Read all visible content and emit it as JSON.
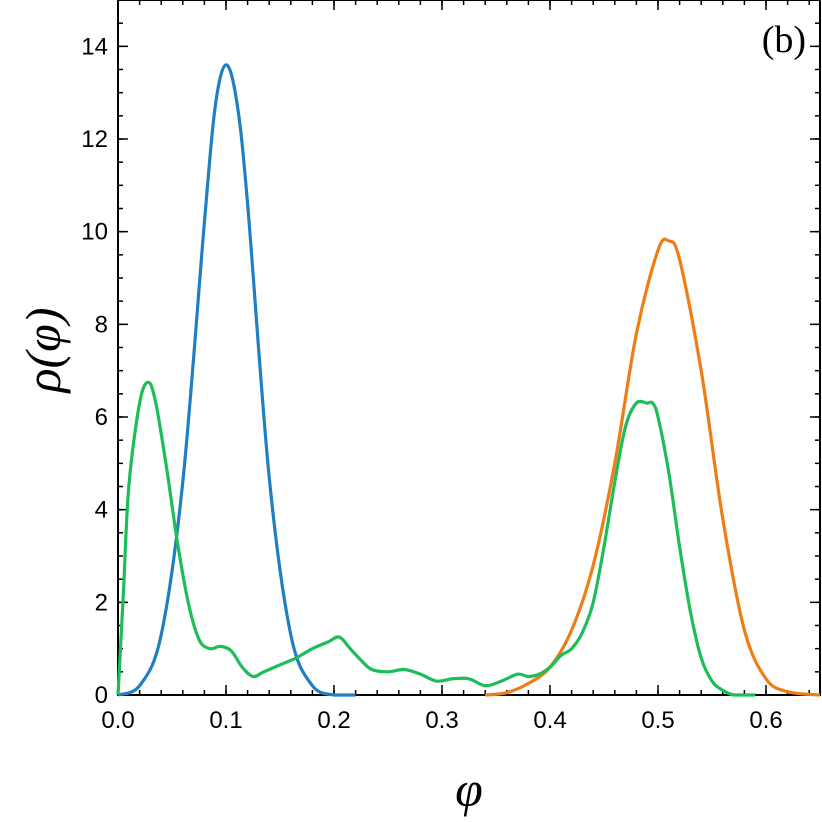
{
  "chart_data": {
    "type": "line",
    "panel_label": "(b)",
    "xlabel": "φ",
    "ylabel": "ρ(φ)",
    "xlim": [
      0,
      0.65
    ],
    "ylim": [
      0,
      15
    ],
    "x_ticks": [
      "0.0",
      "0.1",
      "0.2",
      "0.3",
      "0.4",
      "0.5",
      "0.6"
    ],
    "y_ticks": [
      "0",
      "2",
      "4",
      "6",
      "8",
      "10",
      "12",
      "14"
    ],
    "grid": false,
    "legend": "none",
    "series": [
      {
        "color": "#1f7fc0",
        "x": [
          0,
          0.02,
          0.04,
          0.06,
          0.08,
          0.09,
          0.1,
          0.11,
          0.12,
          0.14,
          0.16,
          0.18,
          0.2,
          0.22
        ],
        "y": [
          0,
          0.2,
          1.3,
          4.6,
          10.2,
          12.7,
          13.6,
          12.8,
          10.6,
          4.7,
          1.3,
          0.2,
          0,
          0
        ]
      },
      {
        "color": "#ef7d16",
        "x": [
          0.34,
          0.36,
          0.38,
          0.4,
          0.42,
          0.44,
          0.46,
          0.48,
          0.5,
          0.51,
          0.52,
          0.54,
          0.56,
          0.58,
          0.6,
          0.62,
          0.65
        ],
        "y": [
          0,
          0.05,
          0.25,
          0.6,
          1.4,
          2.8,
          5.0,
          7.8,
          9.6,
          9.8,
          9.4,
          7.0,
          3.8,
          1.4,
          0.35,
          0.07,
          0
        ]
      },
      {
        "color": "#1dbd57",
        "x": [
          0,
          0.005,
          0.01,
          0.02,
          0.028,
          0.035,
          0.045,
          0.055,
          0.065,
          0.075,
          0.085,
          0.095,
          0.105,
          0.115,
          0.125,
          0.135,
          0.15,
          0.165,
          0.18,
          0.195,
          0.205,
          0.215,
          0.225,
          0.235,
          0.25,
          0.265,
          0.28,
          0.295,
          0.31,
          0.325,
          0.34,
          0.355,
          0.37,
          0.38,
          0.39,
          0.4,
          0.41,
          0.42,
          0.43,
          0.44,
          0.45,
          0.46,
          0.47,
          0.48,
          0.49,
          0.495,
          0.5,
          0.51,
          0.52,
          0.53,
          0.54,
          0.55,
          0.56,
          0.57,
          0.58,
          0.59
        ],
        "y": [
          0,
          2.2,
          4.5,
          6.3,
          6.75,
          6.3,
          4.9,
          3.3,
          2.0,
          1.2,
          1.0,
          1.05,
          0.95,
          0.6,
          0.4,
          0.5,
          0.65,
          0.8,
          1.0,
          1.15,
          1.25,
          1.0,
          0.75,
          0.55,
          0.5,
          0.55,
          0.45,
          0.3,
          0.35,
          0.35,
          0.2,
          0.3,
          0.45,
          0.4,
          0.45,
          0.6,
          0.85,
          1.0,
          1.35,
          2.0,
          3.2,
          4.6,
          5.8,
          6.3,
          6.3,
          6.3,
          6.0,
          4.8,
          3.2,
          1.8,
          0.8,
          0.3,
          0.1,
          0,
          0,
          0
        ]
      }
    ]
  }
}
